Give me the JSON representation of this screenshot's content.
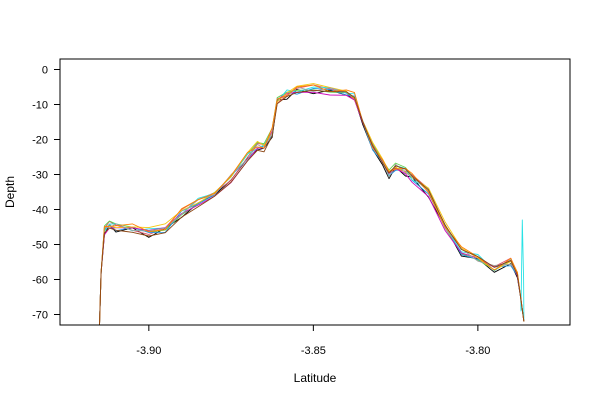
{
  "chart_data": {
    "type": "line",
    "title": "",
    "xlabel": "Latitude",
    "ylabel": "Depth",
    "xlim": [
      -3.927,
      -3.772
    ],
    "ylim": [
      -73,
      3
    ],
    "xticks": [
      -3.9,
      -3.85,
      -3.8
    ],
    "xtick_labels": [
      "-3.90",
      "-3.85",
      "-3.80"
    ],
    "yticks": [
      0,
      -10,
      -20,
      -30,
      -40,
      -50,
      -60,
      -70
    ],
    "ytick_labels": [
      "0",
      "-10",
      "-20",
      "-30",
      "-40",
      "-50",
      "-60",
      "-70"
    ],
    "grid": false,
    "legend": "none",
    "base_profile": {
      "x": [
        -3.915,
        -3.9145,
        -3.9135,
        -3.912,
        -3.91,
        -3.905,
        -3.9,
        -3.895,
        -3.89,
        -3.885,
        -3.88,
        -3.875,
        -3.87,
        -3.867,
        -3.865,
        -3.8625,
        -3.861,
        -3.858,
        -3.855,
        -3.85,
        -3.845,
        -3.84,
        -3.8375,
        -3.835,
        -3.832,
        -3.829,
        -3.827,
        -3.825,
        -3.822,
        -3.82,
        -3.815,
        -3.81,
        -3.805,
        -3.8,
        -3.795,
        -3.79,
        -3.788,
        -3.787,
        -3.786
      ],
      "y": [
        -73,
        -58,
        -46,
        -44.5,
        -45,
        -45.5,
        -46.5,
        -45.5,
        -41,
        -38,
        -35,
        -31,
        -25,
        -22,
        -22.5,
        -18,
        -9,
        -7,
        -6,
        -5.5,
        -6,
        -6.2,
        -8,
        -15,
        -22,
        -27,
        -30,
        -28,
        -29,
        -31,
        -35,
        -45,
        -52,
        -54,
        -57,
        -55,
        -59,
        -65,
        -72
      ]
    },
    "series": [
      {
        "color": "#000000",
        "offset": -0.6,
        "spike": null
      },
      {
        "color": "#df536b",
        "offset": 0.2,
        "spike": null
      },
      {
        "color": "#61d04f",
        "offset": 0.4,
        "spike": null
      },
      {
        "color": "#2297e6",
        "offset": -0.2,
        "spike": null
      },
      {
        "color": "#28e2e5",
        "offset": 0.3,
        "spike": {
          "x": -3.7865,
          "y": -43
        }
      },
      {
        "color": "#cd0bbc",
        "offset": -0.4,
        "spike": null
      },
      {
        "color": "#f5c710",
        "offset": 0.6,
        "spike": null
      },
      {
        "color": "#9e9e9e",
        "offset": 0.1,
        "spike": null
      },
      {
        "color": "#ff7f00",
        "offset": 0.5,
        "spike": null
      },
      {
        "color": "#8b4513",
        "offset": -0.3,
        "spike": null
      }
    ]
  }
}
